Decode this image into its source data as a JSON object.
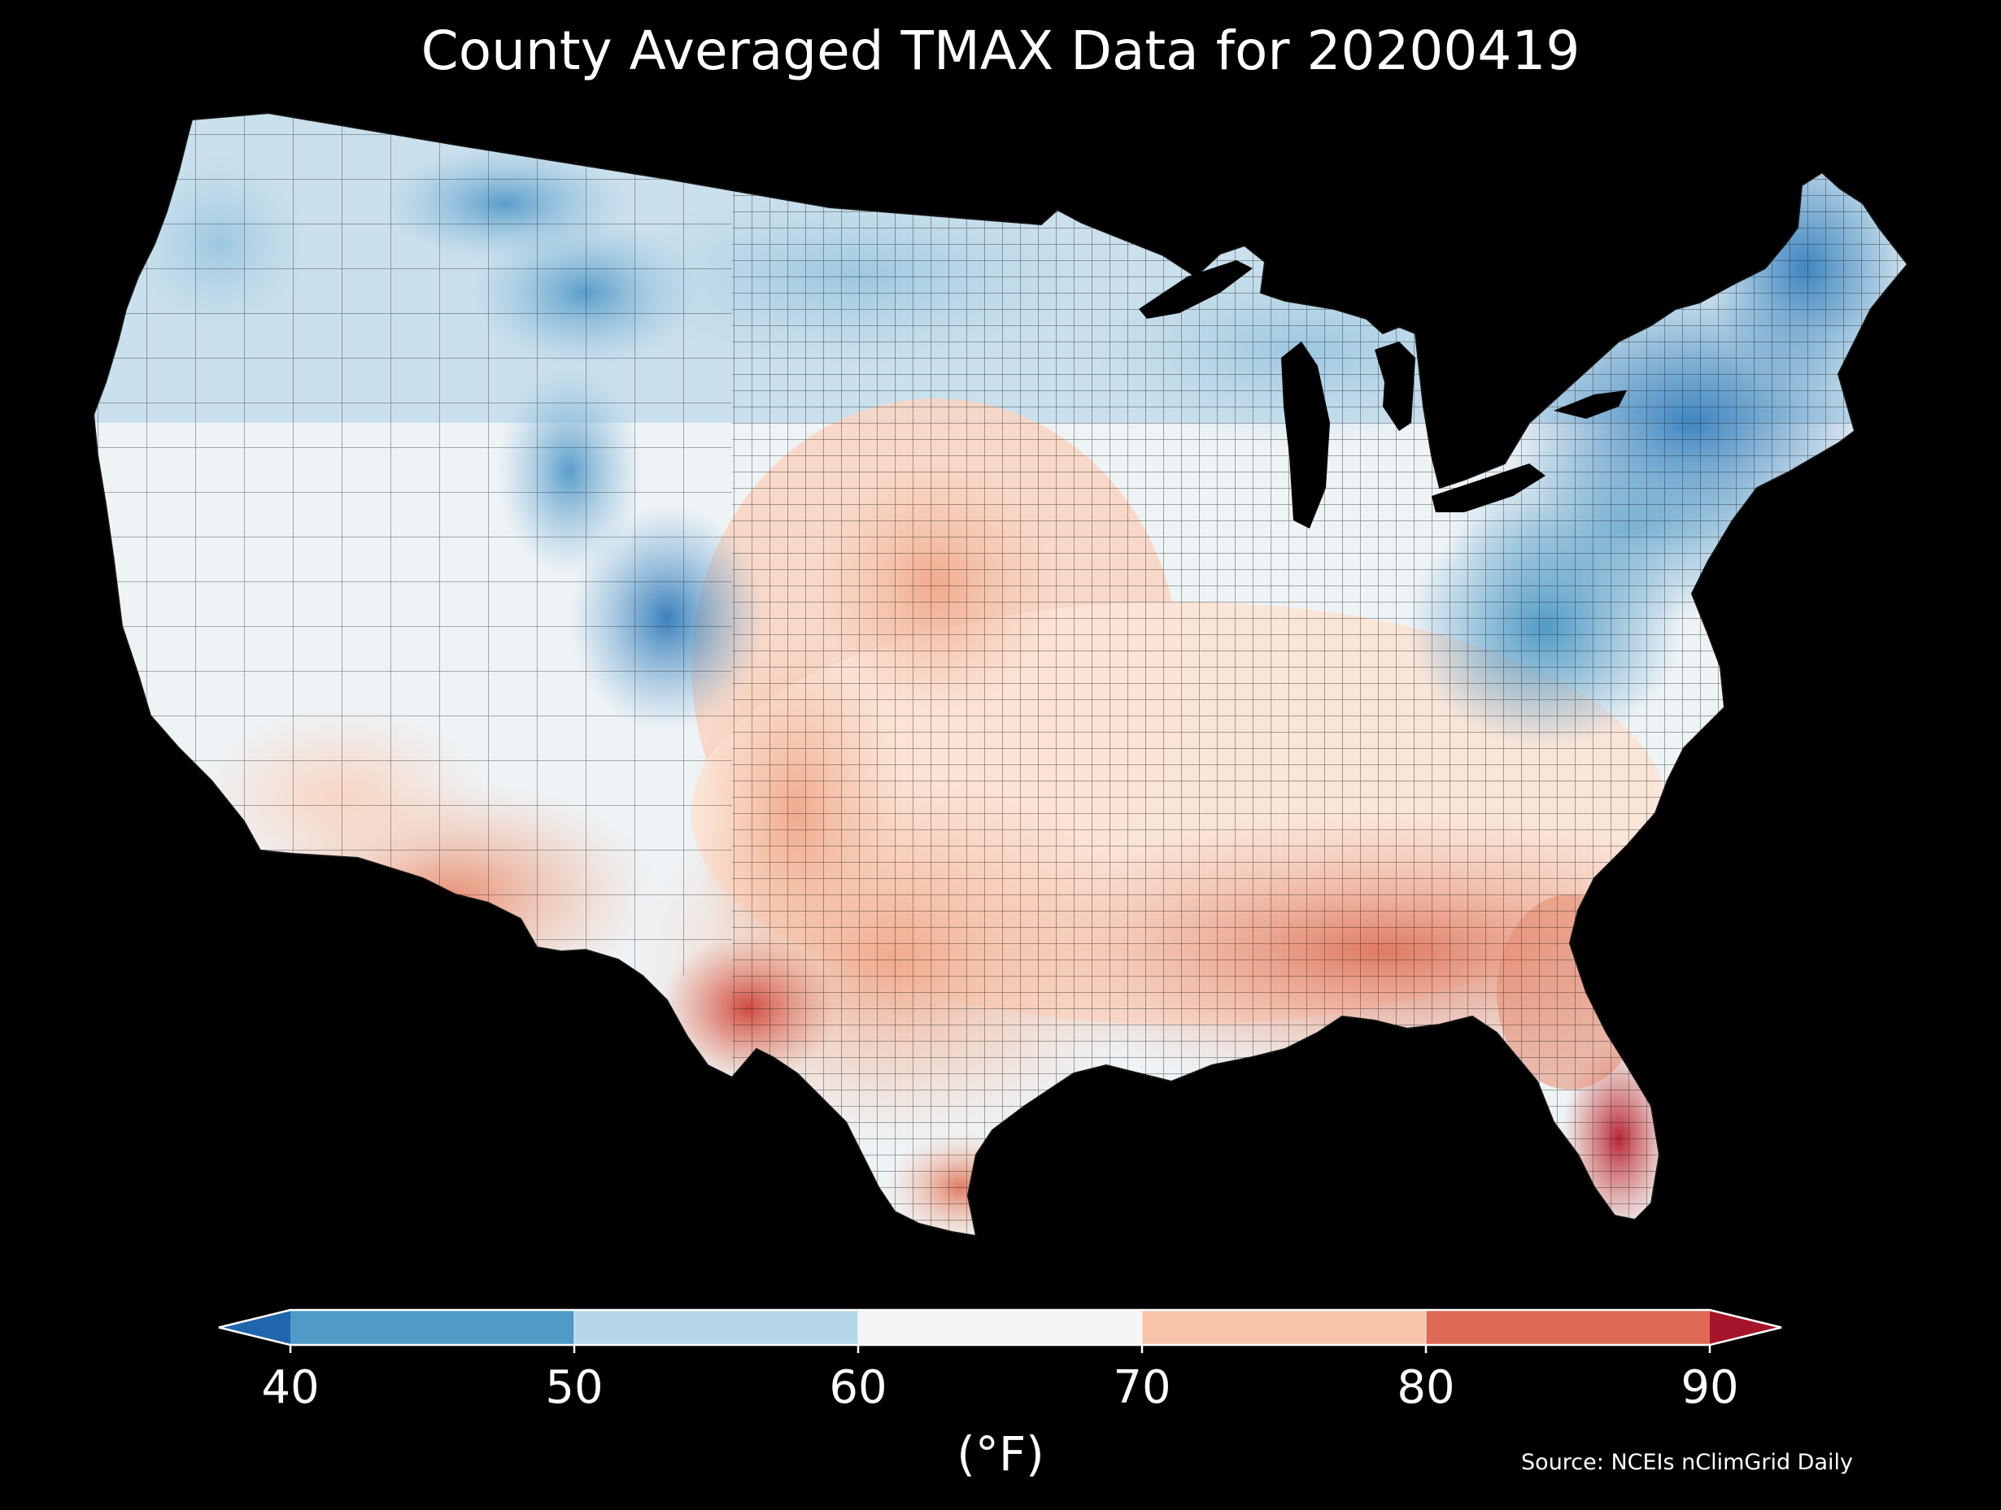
{
  "title": "County Averaged TMAX Data for 20200419",
  "source": "Source: NCEIs nClimGrid Daily",
  "colorbar": {
    "unit_label": "(°F)",
    "ticks": [
      40,
      50,
      60,
      70,
      80,
      90
    ],
    "tick_labels": [
      "40",
      "50",
      "60",
      "70",
      "80",
      "90"
    ],
    "bins": [
      {
        "from": 40,
        "to": 50,
        "color": "#4f9ac6"
      },
      {
        "from": 50,
        "to": 60,
        "color": "#b6d7e8"
      },
      {
        "from": 60,
        "to": 70,
        "color": "#f5f5f5"
      },
      {
        "from": 70,
        "to": 80,
        "color": "#f7c4a9"
      },
      {
        "from": 80,
        "to": 90,
        "color": "#de6a55"
      }
    ],
    "under_color": "#2066ac",
    "over_color": "#a51428",
    "extend": "both"
  },
  "map": {
    "region": "Contiguous United States",
    "background_color": "#000000",
    "boundary_color": "#1a1a1a",
    "regions": [
      {
        "name": "northwest",
        "value": 55,
        "color": "#b6d7e8"
      },
      {
        "name": "california-great-basin",
        "value": 62,
        "color": "#e8f0f5"
      },
      {
        "name": "northern-rockies",
        "value": 48,
        "color": "#6fa8d2"
      },
      {
        "name": "colorado-rockies",
        "value": 44,
        "color": "#3f86c0"
      },
      {
        "name": "southwest-desert",
        "value": 78,
        "color": "#eea488"
      },
      {
        "name": "southern-plains",
        "value": 76,
        "color": "#f3b79b"
      },
      {
        "name": "texas-big-bend",
        "value": 85,
        "color": "#d55546"
      },
      {
        "name": "northern-plains",
        "value": 56,
        "color": "#c9e0ec"
      },
      {
        "name": "midwest",
        "value": 63,
        "color": "#f2f2f2"
      },
      {
        "name": "great-lakes",
        "value": 56,
        "color": "#c9e0ec"
      },
      {
        "name": "appalachians",
        "value": 46,
        "color": "#4f9ac6"
      },
      {
        "name": "northeast",
        "value": 44,
        "color": "#3f86c0"
      },
      {
        "name": "southeast",
        "value": 79,
        "color": "#e99075"
      },
      {
        "name": "gulf-coast",
        "value": 80,
        "color": "#e07b62"
      },
      {
        "name": "south-florida",
        "value": 88,
        "color": "#b82637"
      }
    ]
  }
}
